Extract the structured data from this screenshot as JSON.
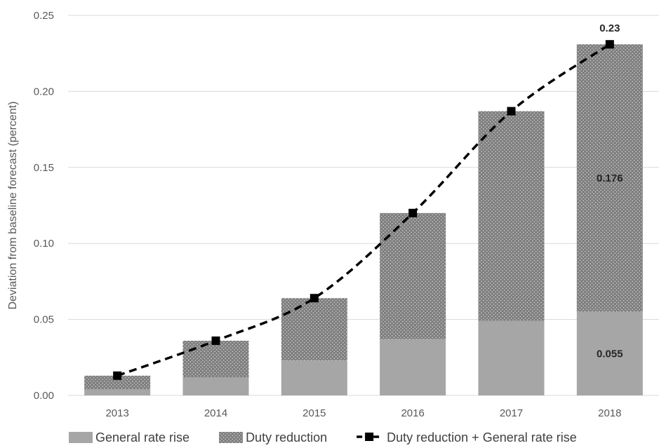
{
  "chart_data": {
    "type": "bar",
    "stacked": true,
    "categories": [
      "2013",
      "2014",
      "2015",
      "2016",
      "2017",
      "2018"
    ],
    "series": [
      {
        "name": "General rate rise",
        "type": "bar",
        "values": [
          0.004,
          0.012,
          0.023,
          0.037,
          0.049,
          0.055
        ],
        "color": "#a6a6a6"
      },
      {
        "name": "Duty reduction",
        "type": "bar",
        "pattern": "dotted",
        "values": [
          0.009,
          0.024,
          0.041,
          0.083,
          0.138,
          0.176
        ],
        "color": "#7f7f7f"
      },
      {
        "name": "Duty reduction + General rate rise",
        "type": "line",
        "style": "dashed",
        "marker": "square",
        "values": [
          0.013,
          0.036,
          0.064,
          0.12,
          0.187,
          0.231
        ],
        "color": "#000000"
      }
    ],
    "title": "",
    "xlabel": "",
    "ylabel": "Deviation from baseline forecast (percent)",
    "ylim": [
      0,
      0.25
    ],
    "yticks": [
      "0.00",
      "0.05",
      "0.10",
      "0.15",
      "0.20",
      "0.25"
    ],
    "grid": "horizontal",
    "legend_position": "bottom",
    "data_labels": [
      {
        "category": "2018",
        "series": "General rate rise",
        "text": "0.055"
      },
      {
        "category": "2018",
        "series": "Duty reduction",
        "text": "0.176"
      },
      {
        "category": "2018",
        "series": "Duty reduction + General rate rise",
        "text": "0.23"
      }
    ]
  }
}
